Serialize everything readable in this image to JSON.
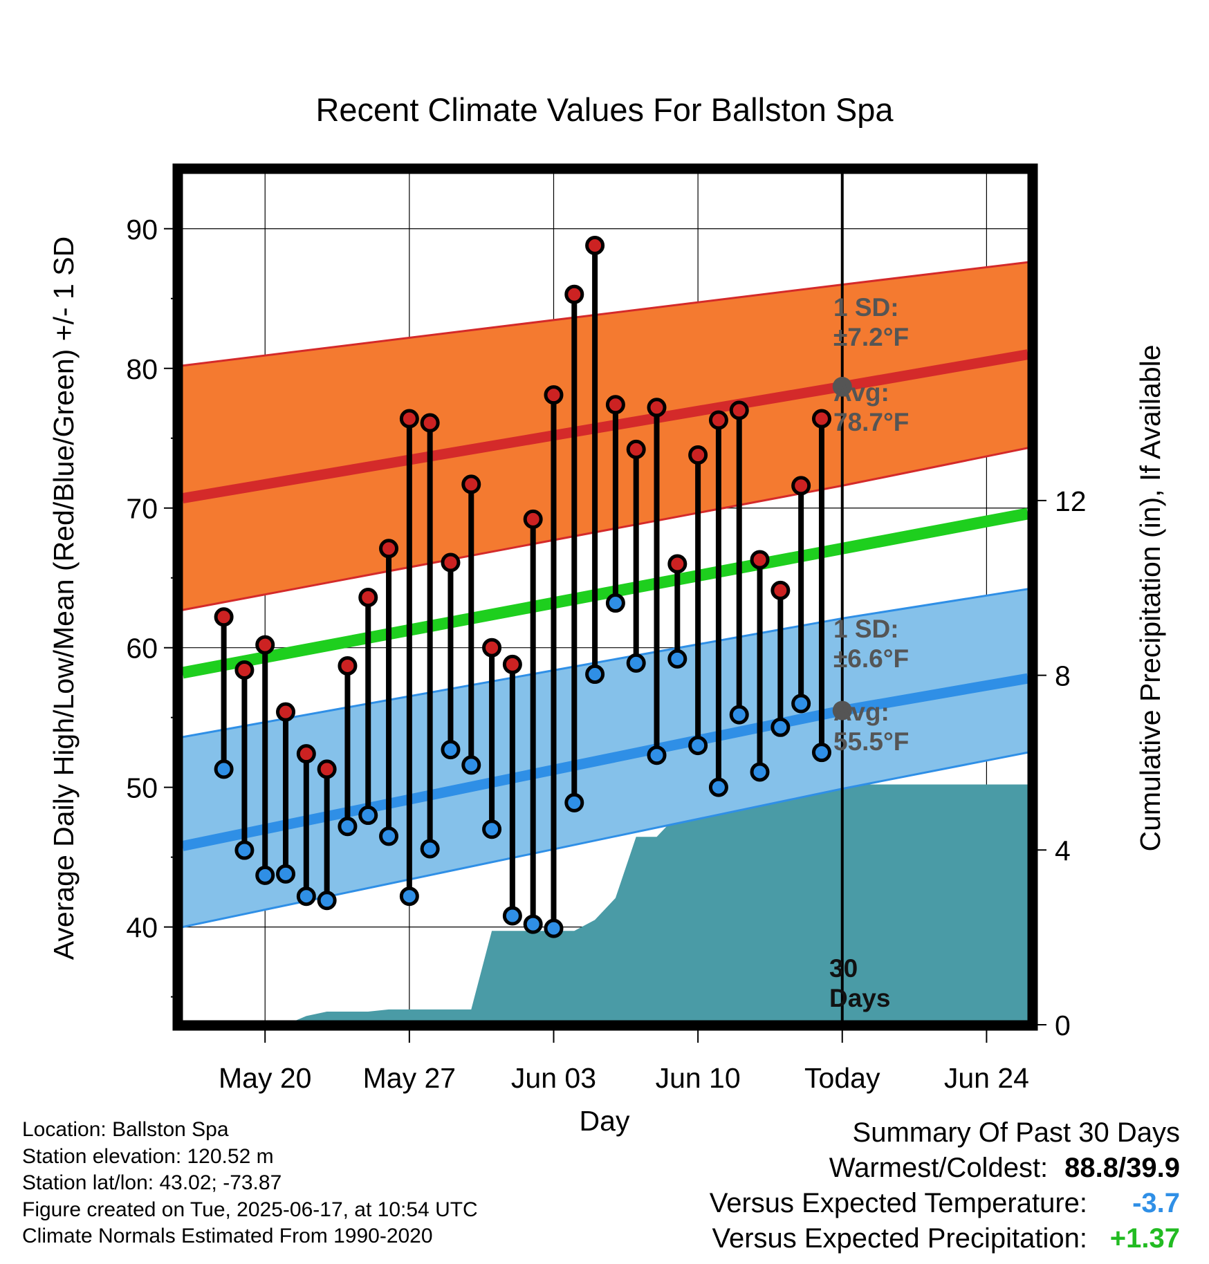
{
  "chart_data": {
    "type": "line",
    "title": "Recent Climate Values For Ballston Spa",
    "xlabel": "Day",
    "ylabel": "Average Daily High/Low/Mean (Red/Blue/Green) +/- 1 SD",
    "y2label": "Cumulative Precipitation (in), If Available",
    "ylim": [
      33,
      94
    ],
    "y2lim": [
      0,
      19.5
    ],
    "yticks": [
      40,
      50,
      60,
      70,
      80,
      90
    ],
    "y2ticks": [
      0,
      4,
      8,
      12
    ],
    "xlim": [
      "2025-05-16",
      "2025-06-26"
    ],
    "xticks": [
      {
        "date": "2025-05-20",
        "label": "May 20"
      },
      {
        "date": "2025-05-27",
        "label": "May 27"
      },
      {
        "date": "2025-06-03",
        "label": "Jun 03"
      },
      {
        "date": "2025-06-10",
        "label": "Jun 10"
      },
      {
        "date": "2025-06-17",
        "label": "Today"
      },
      {
        "date": "2025-06-24",
        "label": "Jun 24"
      }
    ],
    "grid": true,
    "today": "2025-06-17",
    "period_label": [
      "30",
      "Days"
    ],
    "series": [
      {
        "name": "High",
        "color": "#cc2222",
        "x": [
          "2025-05-18",
          "2025-05-19",
          "2025-05-20",
          "2025-05-21",
          "2025-05-22",
          "2025-05-23",
          "2025-05-24",
          "2025-05-25",
          "2025-05-26",
          "2025-05-27",
          "2025-05-28",
          "2025-05-29",
          "2025-05-30",
          "2025-05-31",
          "2025-06-01",
          "2025-06-02",
          "2025-06-03",
          "2025-06-04",
          "2025-06-05",
          "2025-06-06",
          "2025-06-07",
          "2025-06-08",
          "2025-06-09",
          "2025-06-10",
          "2025-06-11",
          "2025-06-12",
          "2025-06-13",
          "2025-06-14",
          "2025-06-15",
          "2025-06-16"
        ],
        "values": [
          62.2,
          58.4,
          60.2,
          55.4,
          52.4,
          51.3,
          58.7,
          63.6,
          67.1,
          76.4,
          76.1,
          66.1,
          71.7,
          60.0,
          58.8,
          69.2,
          78.1,
          85.3,
          88.8,
          77.4,
          74.2,
          77.2,
          66.0,
          73.8,
          76.3,
          77.0,
          66.3,
          64.1,
          71.6,
          76.4
        ]
      },
      {
        "name": "Low",
        "color": "#2f8fe6",
        "x": [
          "2025-05-18",
          "2025-05-19",
          "2025-05-20",
          "2025-05-21",
          "2025-05-22",
          "2025-05-23",
          "2025-05-24",
          "2025-05-25",
          "2025-05-26",
          "2025-05-27",
          "2025-05-28",
          "2025-05-29",
          "2025-05-30",
          "2025-05-31",
          "2025-06-01",
          "2025-06-02",
          "2025-06-03",
          "2025-06-04",
          "2025-06-05",
          "2025-06-06",
          "2025-06-07",
          "2025-06-08",
          "2025-06-09",
          "2025-06-10",
          "2025-06-11",
          "2025-06-12",
          "2025-06-13",
          "2025-06-14",
          "2025-06-15",
          "2025-06-16"
        ],
        "values": [
          51.3,
          45.5,
          43.7,
          43.8,
          42.2,
          41.9,
          47.2,
          48.0,
          46.5,
          42.2,
          45.6,
          52.7,
          51.6,
          47.0,
          40.8,
          40.2,
          39.9,
          48.9,
          58.1,
          63.2,
          58.9,
          52.3,
          59.2,
          53.0,
          50.0,
          55.2,
          51.1,
          54.3,
          56.0,
          52.5
        ]
      }
    ],
    "normals": {
      "x": [
        "2025-05-16",
        "2025-06-17",
        "2025-06-26"
      ],
      "high_avg": [
        70.7,
        78.7,
        81.0
      ],
      "high_sd_upper": [
        80.2,
        86.0,
        87.6
      ],
      "high_sd_lower": [
        62.7,
        71.6,
        74.3
      ],
      "mean": [
        58.2,
        67.1,
        69.6
      ],
      "low_avg": [
        45.8,
        55.5,
        57.8
      ],
      "low_sd_upper": [
        53.6,
        62.1,
        64.2
      ],
      "low_sd_lower": [
        40.0,
        49.9,
        52.5
      ]
    },
    "precipitation": {
      "color": "#4a9ba6",
      "x": [
        "2025-05-16",
        "2025-05-21",
        "2025-05-22",
        "2025-05-23",
        "2025-05-25",
        "2025-05-26",
        "2025-05-29",
        "2025-05-30",
        "2025-05-31",
        "2025-06-01",
        "2025-06-02",
        "2025-06-03",
        "2025-06-04",
        "2025-06-05",
        "2025-06-06",
        "2025-06-07",
        "2025-06-08",
        "2025-06-09",
        "2025-06-10",
        "2025-06-11",
        "2025-06-12",
        "2025-06-13",
        "2025-06-14",
        "2025-06-15",
        "2025-06-16",
        "2025-06-17",
        "2025-06-26"
      ],
      "values": [
        0,
        0,
        0.2,
        0.3,
        0.3,
        0.35,
        0.35,
        0.35,
        2.15,
        2.15,
        2.15,
        2.15,
        2.15,
        2.4,
        2.9,
        4.3,
        4.3,
        4.8,
        5.4,
        5.4,
        5.4,
        5.4,
        5.5,
        5.5,
        5.5,
        5.5,
        5.5
      ]
    },
    "annotations": {
      "high_sd": [
        "1 SD:",
        "±7.2°F"
      ],
      "high_avg": [
        "Avg:",
        "78.7°F"
      ],
      "low_sd": [
        "1 SD:",
        "±6.6°F"
      ],
      "low_avg": [
        "Avg:",
        "55.5°F"
      ]
    }
  },
  "info": {
    "location": "Location: Ballston Spa",
    "elevation": "Station elevation: 120.52 m",
    "latlon": "Station lat/lon: 43.02; -73.87",
    "created": "Figure created on Tue, 2025-06-17, at 10:54 UTC",
    "normals": "Climate Normals Estimated From 1990-2020"
  },
  "summary": {
    "title": "Summary Of Past 30 Days",
    "warmest_label": "Warmest/Coldest:",
    "warmest_value": "88.8/39.9",
    "temp_label": "Versus Expected Temperature:",
    "temp_value": "-3.7",
    "temp_color": "#2f8fe6",
    "precip_label": "Versus Expected Precipitation:",
    "precip_value": "+1.37",
    "precip_color": "#22bb22"
  }
}
